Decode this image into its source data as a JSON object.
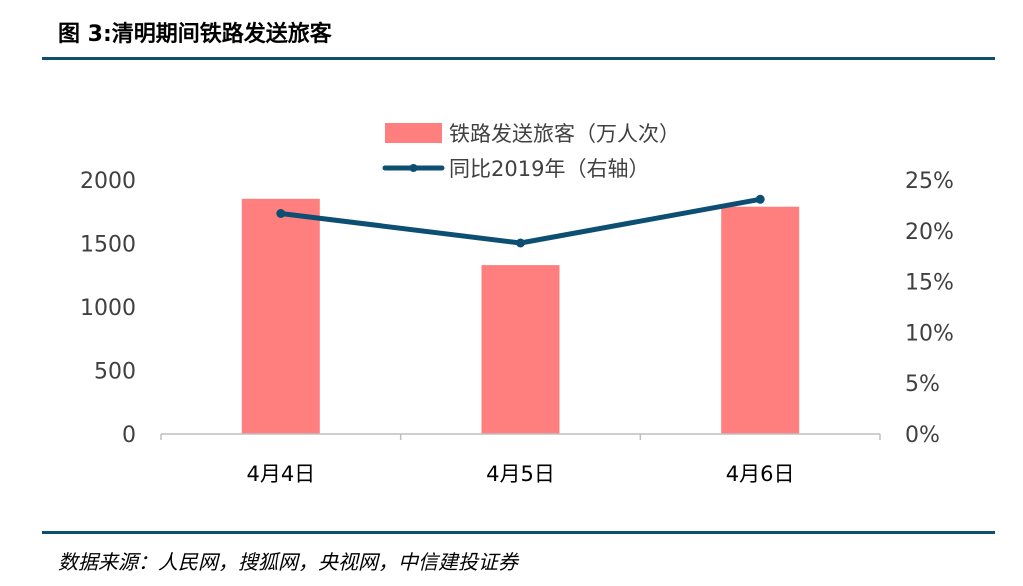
{
  "figure": {
    "title": "图 3:清明期间铁路发送旅客",
    "source": "数据来源：人民网，搜狐网，央视网，中信建投证券"
  },
  "colors": {
    "bar": "#ff7f7f",
    "line": "#0d4f73",
    "axis": "#bfbfbf",
    "rule": "#0d4f73"
  },
  "chart_data": {
    "type": "bar",
    "categories": [
      "4月4日",
      "4月5日",
      "4月6日"
    ],
    "series": [
      {
        "name": "铁路发送旅客（万人次）",
        "type": "bar",
        "axis": "left",
        "values": [
          1852,
          1330,
          1790
        ]
      },
      {
        "name": "同比2019年（右轴）",
        "type": "line",
        "axis": "right",
        "values": [
          21.7,
          18.8,
          23.1
        ]
      }
    ],
    "y_left": {
      "ylim": [
        0,
        2000
      ],
      "ticks": [
        "0",
        "500",
        "1000",
        "1500",
        "2000"
      ]
    },
    "y_right": {
      "ylim": [
        0,
        25
      ],
      "ticks": [
        "0%",
        "5%",
        "10%",
        "15%",
        "20%",
        "25%"
      ]
    },
    "legend_position": "top-center",
    "grid": false
  }
}
